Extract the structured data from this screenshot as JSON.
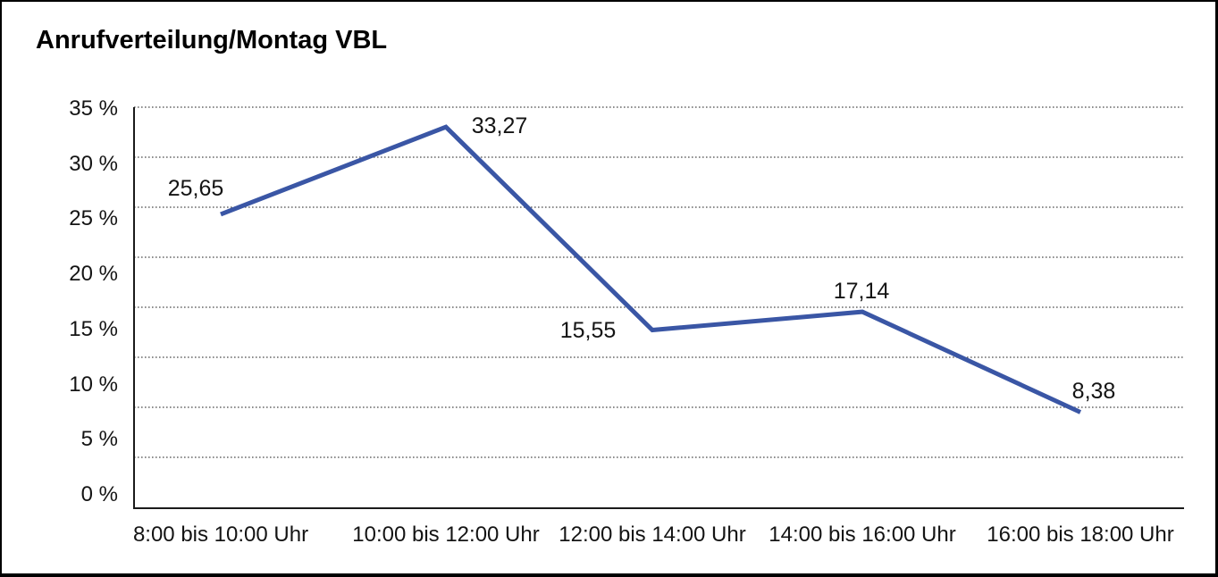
{
  "frame": {
    "background": "#ffffff",
    "border_color": "#000000"
  },
  "chart_data": {
    "type": "line",
    "title": "Anrufverteilung/Montag VBL",
    "categories": [
      "8:00 bis 10:00 Uhr",
      "10:00 bis 12:00 Uhr",
      "12:00 bis 14:00 Uhr",
      "14:00 bis 16:00 Uhr",
      "16:00 bis 18:00 Uhr"
    ],
    "values": [
      25.65,
      33.27,
      15.55,
      17.14,
      8.38
    ],
    "point_labels": [
      "25,65",
      "33,27",
      "15,55",
      "17,14",
      "8,38"
    ],
    "ytick_labels": [
      "35 %",
      "30 %",
      "25 %",
      "20 %",
      "15 %",
      "10 %",
      "5 %",
      "0 %"
    ],
    "ylim": [
      0,
      35
    ],
    "ytick_step": 5,
    "xlabel": "",
    "ylabel": "",
    "grid": "horizontal-dotted",
    "legend": "none",
    "line_color": "#3A56A5",
    "axis_color": "#1a1a1a",
    "gridline_color": "#4a4a4a",
    "decimal_separator": ","
  }
}
